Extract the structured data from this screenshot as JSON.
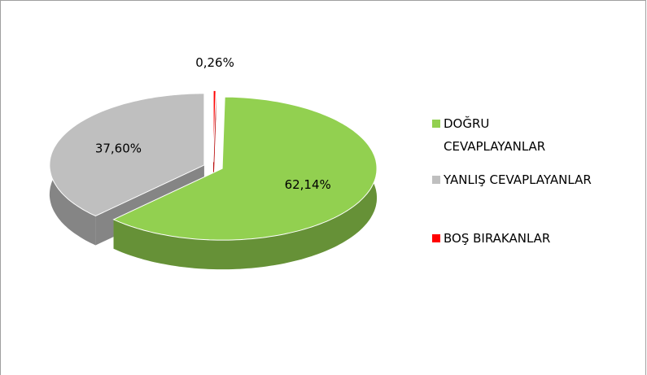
{
  "chart_data": {
    "type": "pie",
    "categories": [
      "BOŞ BIRAKANLAR",
      "DOĞRU CEVAPLAYANLAR",
      "YANLIŞ CEVAPLAYANLAR"
    ],
    "values": [
      0.26,
      62.14,
      37.6
    ],
    "value_labels": [
      "0,26%",
      "62,14%",
      "37,60%"
    ],
    "colors": [
      "#ff0000",
      "#92d050",
      "#bfbfbf"
    ],
    "legend_order": [
      1,
      2,
      0
    ]
  }
}
